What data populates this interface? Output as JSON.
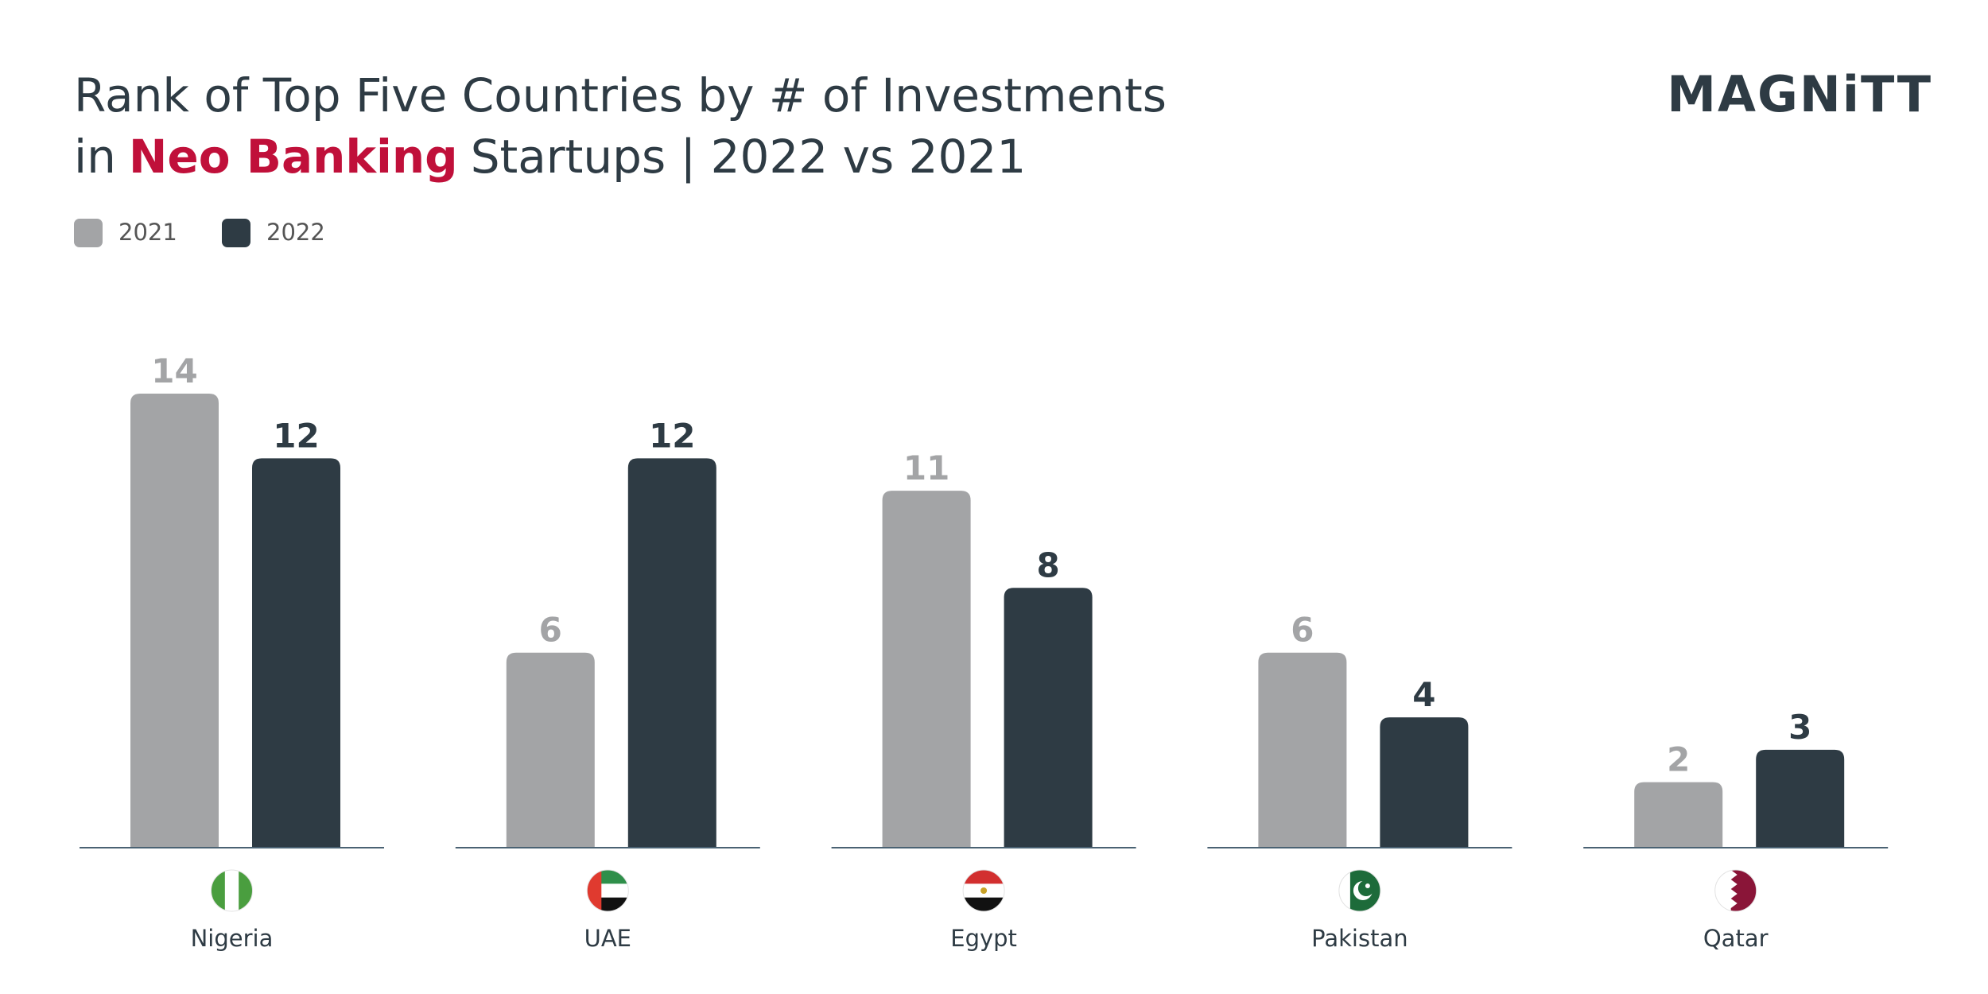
{
  "chart_data": {
    "type": "bar",
    "title": {
      "line1": "Rank of Top Five Countries by # of Investments",
      "line2_start": "in",
      "highlight": "Neo Banking",
      "line2_end": "Startups | 2022 vs 2021"
    },
    "logo": "MAGNiTT",
    "categories": [
      "Nigeria",
      "UAE",
      "Egypt",
      "Pakistan",
      "Qatar"
    ],
    "series": [
      {
        "name": "2021",
        "color": "#a3a4a6",
        "values": [
          14,
          6,
          11,
          6,
          2
        ]
      },
      {
        "name": "2022",
        "color": "#2e3b44",
        "values": [
          12,
          12,
          8,
          4,
          3
        ]
      }
    ],
    "highlight_color": "#c0103a"
  }
}
